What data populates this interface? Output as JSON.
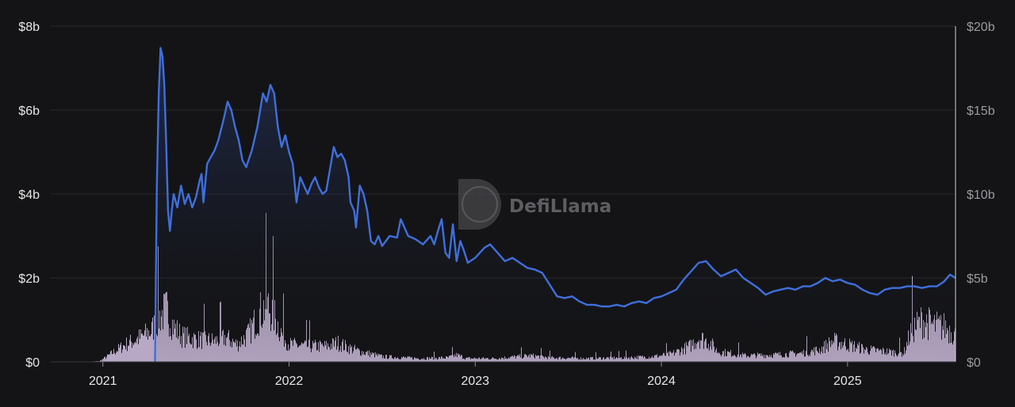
{
  "watermark": {
    "text": "DefiLlama",
    "icon": "llama-logo-icon"
  },
  "colors": {
    "background": "#141416",
    "line": "#3f6fdc",
    "bars": "#c9b8d8",
    "area_top": "#2a3e7a",
    "grid": "#2a2a2e",
    "axis_text": "#e6e6e6",
    "right_axis_text": "#9a9aa0"
  },
  "chart_data": {
    "type": "line",
    "grid": true,
    "x_ticks": [
      "2021",
      "2022",
      "2023",
      "2024",
      "2025"
    ],
    "x_tick_values": [
      2021.0,
      2022.0,
      2023.0,
      2024.0,
      2025.0
    ],
    "xlim": [
      2020.72,
      2025.58
    ],
    "left_axis": {
      "ticks": [
        "$0",
        "$2b",
        "$4b",
        "$6b",
        "$8b"
      ],
      "values": [
        0,
        2,
        4,
        6,
        8
      ],
      "ylim": [
        0,
        8
      ],
      "unit": "billions USD"
    },
    "right_axis": {
      "ticks": [
        "$0",
        "$5b",
        "$10b",
        "$15b",
        "$20b"
      ],
      "values": [
        0,
        5,
        10,
        15,
        20
      ],
      "ylim": [
        0,
        20
      ],
      "unit": "billions USD"
    },
    "series": [
      {
        "kind": "line",
        "axis": "right",
        "color": "#3f6fdc",
        "points": [
          [
            2021.28,
            0.0
          ],
          [
            2021.29,
            10.5
          ],
          [
            2021.3,
            16.0
          ],
          [
            2021.31,
            18.7
          ],
          [
            2021.32,
            18.2
          ],
          [
            2021.33,
            16.5
          ],
          [
            2021.34,
            13.0
          ],
          [
            2021.35,
            9.0
          ],
          [
            2021.36,
            7.8
          ],
          [
            2021.37,
            9.0
          ],
          [
            2021.38,
            10.0
          ],
          [
            2021.4,
            9.2
          ],
          [
            2021.42,
            10.5
          ],
          [
            2021.44,
            9.4
          ],
          [
            2021.46,
            10.0
          ],
          [
            2021.48,
            9.2
          ],
          [
            2021.5,
            9.8
          ],
          [
            2021.52,
            10.8
          ],
          [
            2021.53,
            11.2
          ],
          [
            2021.54,
            9.5
          ],
          [
            2021.56,
            11.8
          ],
          [
            2021.6,
            12.6
          ],
          [
            2021.62,
            13.2
          ],
          [
            2021.65,
            14.5
          ],
          [
            2021.67,
            15.5
          ],
          [
            2021.69,
            15.0
          ],
          [
            2021.71,
            14.0
          ],
          [
            2021.73,
            13.2
          ],
          [
            2021.75,
            12.0
          ],
          [
            2021.77,
            11.6
          ],
          [
            2021.8,
            12.6
          ],
          [
            2021.83,
            14.0
          ],
          [
            2021.86,
            16.0
          ],
          [
            2021.88,
            15.5
          ],
          [
            2021.9,
            16.5
          ],
          [
            2021.92,
            16.0
          ],
          [
            2021.94,
            14.0
          ],
          [
            2021.96,
            12.8
          ],
          [
            2021.98,
            13.5
          ],
          [
            2022.0,
            12.5
          ],
          [
            2022.02,
            11.8
          ],
          [
            2022.04,
            9.5
          ],
          [
            2022.06,
            11.0
          ],
          [
            2022.08,
            10.5
          ],
          [
            2022.1,
            10.0
          ],
          [
            2022.12,
            10.6
          ],
          [
            2022.14,
            11.0
          ],
          [
            2022.16,
            10.4
          ],
          [
            2022.18,
            10.0
          ],
          [
            2022.2,
            10.2
          ],
          [
            2022.22,
            11.5
          ],
          [
            2022.24,
            12.8
          ],
          [
            2022.26,
            12.2
          ],
          [
            2022.28,
            12.4
          ],
          [
            2022.3,
            12.0
          ],
          [
            2022.32,
            11.0
          ],
          [
            2022.33,
            9.5
          ],
          [
            2022.35,
            9.0
          ],
          [
            2022.36,
            8.0
          ],
          [
            2022.38,
            10.5
          ],
          [
            2022.4,
            10.0
          ],
          [
            2022.42,
            9.0
          ],
          [
            2022.44,
            7.2
          ],
          [
            2022.46,
            7.0
          ],
          [
            2022.48,
            7.5
          ],
          [
            2022.5,
            6.9
          ],
          [
            2022.52,
            7.2
          ],
          [
            2022.54,
            7.5
          ],
          [
            2022.58,
            7.4
          ],
          [
            2022.6,
            8.5
          ],
          [
            2022.64,
            7.5
          ],
          [
            2022.68,
            7.3
          ],
          [
            2022.72,
            7.0
          ],
          [
            2022.76,
            7.5
          ],
          [
            2022.78,
            7.0
          ],
          [
            2022.8,
            7.8
          ],
          [
            2022.82,
            8.5
          ],
          [
            2022.84,
            6.5
          ],
          [
            2022.86,
            6.2
          ],
          [
            2022.88,
            8.2
          ],
          [
            2022.9,
            6.0
          ],
          [
            2022.92,
            7.2
          ],
          [
            2022.94,
            6.6
          ],
          [
            2022.96,
            5.9
          ],
          [
            2023.0,
            6.2
          ],
          [
            2023.05,
            6.8
          ],
          [
            2023.08,
            7.0
          ],
          [
            2023.12,
            6.5
          ],
          [
            2023.16,
            6.0
          ],
          [
            2023.2,
            6.2
          ],
          [
            2023.24,
            5.9
          ],
          [
            2023.28,
            5.6
          ],
          [
            2023.32,
            5.5
          ],
          [
            2023.36,
            5.3
          ],
          [
            2023.4,
            4.6
          ],
          [
            2023.44,
            3.9
          ],
          [
            2023.48,
            3.8
          ],
          [
            2023.52,
            3.9
          ],
          [
            2023.56,
            3.6
          ],
          [
            2023.6,
            3.4
          ],
          [
            2023.64,
            3.4
          ],
          [
            2023.68,
            3.3
          ],
          [
            2023.72,
            3.3
          ],
          [
            2023.76,
            3.4
          ],
          [
            2023.8,
            3.3
          ],
          [
            2023.84,
            3.5
          ],
          [
            2023.88,
            3.6
          ],
          [
            2023.92,
            3.5
          ],
          [
            2023.96,
            3.8
          ],
          [
            2024.0,
            3.9
          ],
          [
            2024.04,
            4.1
          ],
          [
            2024.08,
            4.3
          ],
          [
            2024.12,
            4.9
          ],
          [
            2024.16,
            5.4
          ],
          [
            2024.2,
            5.9
          ],
          [
            2024.24,
            6.0
          ],
          [
            2024.28,
            5.5
          ],
          [
            2024.32,
            5.1
          ],
          [
            2024.36,
            5.3
          ],
          [
            2024.4,
            5.5
          ],
          [
            2024.44,
            5.0
          ],
          [
            2024.48,
            4.7
          ],
          [
            2024.52,
            4.4
          ],
          [
            2024.56,
            4.0
          ],
          [
            2024.6,
            4.2
          ],
          [
            2024.64,
            4.3
          ],
          [
            2024.68,
            4.4
          ],
          [
            2024.72,
            4.3
          ],
          [
            2024.76,
            4.5
          ],
          [
            2024.8,
            4.5
          ],
          [
            2024.84,
            4.7
          ],
          [
            2024.88,
            5.0
          ],
          [
            2024.92,
            4.8
          ],
          [
            2024.96,
            4.9
          ],
          [
            2025.0,
            4.7
          ],
          [
            2025.04,
            4.6
          ],
          [
            2025.08,
            4.3
          ],
          [
            2025.12,
            4.1
          ],
          [
            2025.16,
            4.0
          ],
          [
            2025.2,
            4.3
          ],
          [
            2025.24,
            4.4
          ],
          [
            2025.28,
            4.4
          ],
          [
            2025.32,
            4.5
          ],
          [
            2025.36,
            4.5
          ],
          [
            2025.4,
            4.4
          ],
          [
            2025.44,
            4.5
          ],
          [
            2025.48,
            4.5
          ],
          [
            2025.52,
            4.8
          ],
          [
            2025.55,
            5.2
          ],
          [
            2025.58,
            5.0
          ]
        ]
      },
      {
        "kind": "bars",
        "axis": "left",
        "color": "#c9b8d8",
        "profile": [
          [
            2020.72,
            0.0
          ],
          [
            2020.9,
            0.0
          ],
          [
            2020.98,
            0.02
          ],
          [
            2021.02,
            0.15
          ],
          [
            2021.06,
            0.3
          ],
          [
            2021.12,
            0.5
          ],
          [
            2021.2,
            0.7
          ],
          [
            2021.26,
            0.9
          ],
          [
            2021.3,
            1.3
          ],
          [
            2021.34,
            1.5
          ],
          [
            2021.38,
            1.0
          ],
          [
            2021.42,
            0.75
          ],
          [
            2021.5,
            0.65
          ],
          [
            2021.6,
            0.6
          ],
          [
            2021.66,
            0.7
          ],
          [
            2021.72,
            0.5
          ],
          [
            2021.78,
            0.8
          ],
          [
            2021.84,
            1.4
          ],
          [
            2021.88,
            1.65
          ],
          [
            2021.92,
            1.3
          ],
          [
            2021.96,
            0.8
          ],
          [
            2022.0,
            0.5
          ],
          [
            2022.1,
            0.45
          ],
          [
            2022.2,
            0.45
          ],
          [
            2022.26,
            0.55
          ],
          [
            2022.32,
            0.4
          ],
          [
            2022.38,
            0.3
          ],
          [
            2022.5,
            0.15
          ],
          [
            2022.7,
            0.1
          ],
          [
            2022.85,
            0.12
          ],
          [
            2022.9,
            0.2
          ],
          [
            2022.95,
            0.1
          ],
          [
            2023.1,
            0.1
          ],
          [
            2023.3,
            0.18
          ],
          [
            2023.4,
            0.12
          ],
          [
            2023.6,
            0.1
          ],
          [
            2023.8,
            0.12
          ],
          [
            2023.95,
            0.15
          ],
          [
            2024.05,
            0.22
          ],
          [
            2024.15,
            0.45
          ],
          [
            2024.2,
            0.7
          ],
          [
            2024.26,
            0.55
          ],
          [
            2024.3,
            0.3
          ],
          [
            2024.45,
            0.18
          ],
          [
            2024.6,
            0.2
          ],
          [
            2024.75,
            0.25
          ],
          [
            2024.85,
            0.35
          ],
          [
            2024.92,
            0.6
          ],
          [
            2025.0,
            0.5
          ],
          [
            2025.1,
            0.35
          ],
          [
            2025.2,
            0.3
          ],
          [
            2025.3,
            0.25
          ],
          [
            2025.34,
            0.9
          ],
          [
            2025.4,
            1.2
          ],
          [
            2025.46,
            1.05
          ],
          [
            2025.52,
            1.0
          ],
          [
            2025.58,
            0.8
          ]
        ]
      }
    ]
  }
}
